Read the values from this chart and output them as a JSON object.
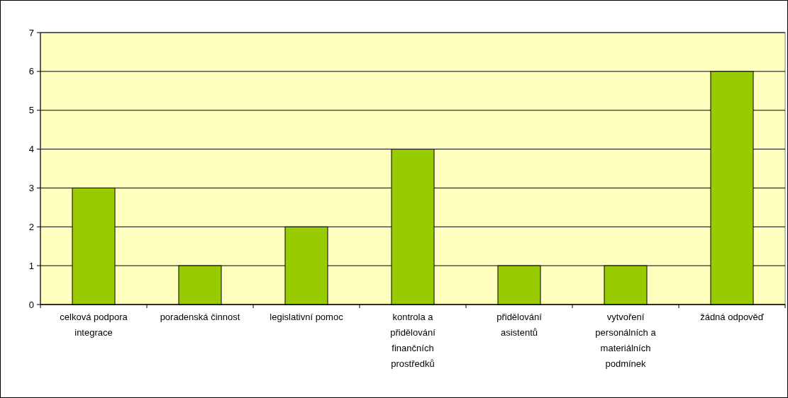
{
  "chart_data": {
    "type": "bar",
    "categories": [
      "celková podpora integrace",
      "poradenská činnost",
      "legislativní pomoc",
      "kontrola a přidělování finančních prostředků",
      "přidělování asistentů",
      "vytvoření personálních a materiálních podmínek",
      "žádná odpověď"
    ],
    "values": [
      3,
      1,
      2,
      4,
      1,
      1,
      6
    ],
    "color": "#99cc00",
    "ylim": [
      0,
      7
    ],
    "yticks": [
      0,
      1,
      2,
      3,
      4,
      5,
      6,
      7
    ],
    "grid": "y"
  }
}
